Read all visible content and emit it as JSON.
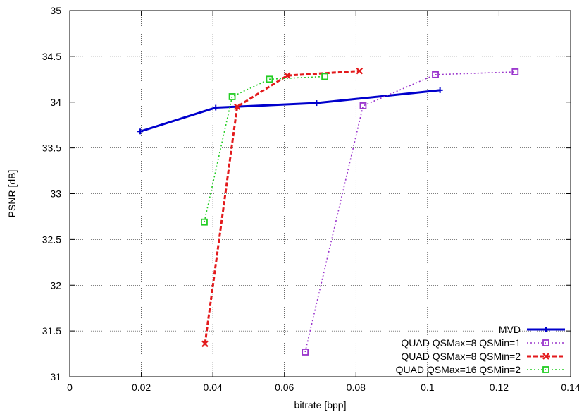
{
  "chart_data": {
    "type": "line",
    "xlabel": "bitrate [bpp]",
    "ylabel": "PSNR [dB]",
    "xlim": [
      0,
      0.14
    ],
    "ylim": [
      31,
      35
    ],
    "x_ticks": [
      0,
      0.02,
      0.04,
      0.06,
      0.08,
      0.1,
      0.12,
      0.14
    ],
    "x_tick_labels": [
      "0",
      "0.02",
      "0.04",
      "0.06",
      "0.08",
      "0.1",
      "0.12",
      "0.14"
    ],
    "y_ticks": [
      31,
      31.5,
      32,
      32.5,
      33,
      33.5,
      34,
      34.5,
      35
    ],
    "y_tick_labels": [
      "31",
      "31.5",
      "32",
      "32.5",
      "33",
      "33.5",
      "34",
      "34.5",
      "35"
    ],
    "grid": true,
    "legend_position": "bottom-right",
    "series": [
      {
        "name": "MVD",
        "color": "#0000cc",
        "dash": "solid",
        "marker": "plus",
        "points": [
          [
            0.0197,
            33.68
          ],
          [
            0.0408,
            33.94
          ],
          [
            0.069,
            33.99
          ],
          [
            0.1035,
            34.13
          ]
        ]
      },
      {
        "name": "QUAD QSMax=8 QSMin=1",
        "color": "#9933cc",
        "dash": "dotted",
        "marker": "square",
        "points": [
          [
            0.0658,
            31.27
          ],
          [
            0.082,
            33.96
          ],
          [
            0.1022,
            34.3
          ],
          [
            0.1245,
            34.33
          ]
        ]
      },
      {
        "name": "QUAD QSMax=8 QSMin=2",
        "color": "#e31a1c",
        "dash": "dashed",
        "marker": "cross",
        "points": [
          [
            0.0378,
            31.36
          ],
          [
            0.0468,
            33.95
          ],
          [
            0.0608,
            34.29
          ],
          [
            0.081,
            34.34
          ]
        ]
      },
      {
        "name": "QUAD QSMax=16 QSMin=2",
        "color": "#22cc22",
        "dash": "dotted",
        "marker": "square",
        "points": [
          [
            0.0376,
            32.69
          ],
          [
            0.0454,
            34.06
          ],
          [
            0.0558,
            34.25
          ],
          [
            0.0713,
            34.28
          ]
        ]
      }
    ]
  }
}
